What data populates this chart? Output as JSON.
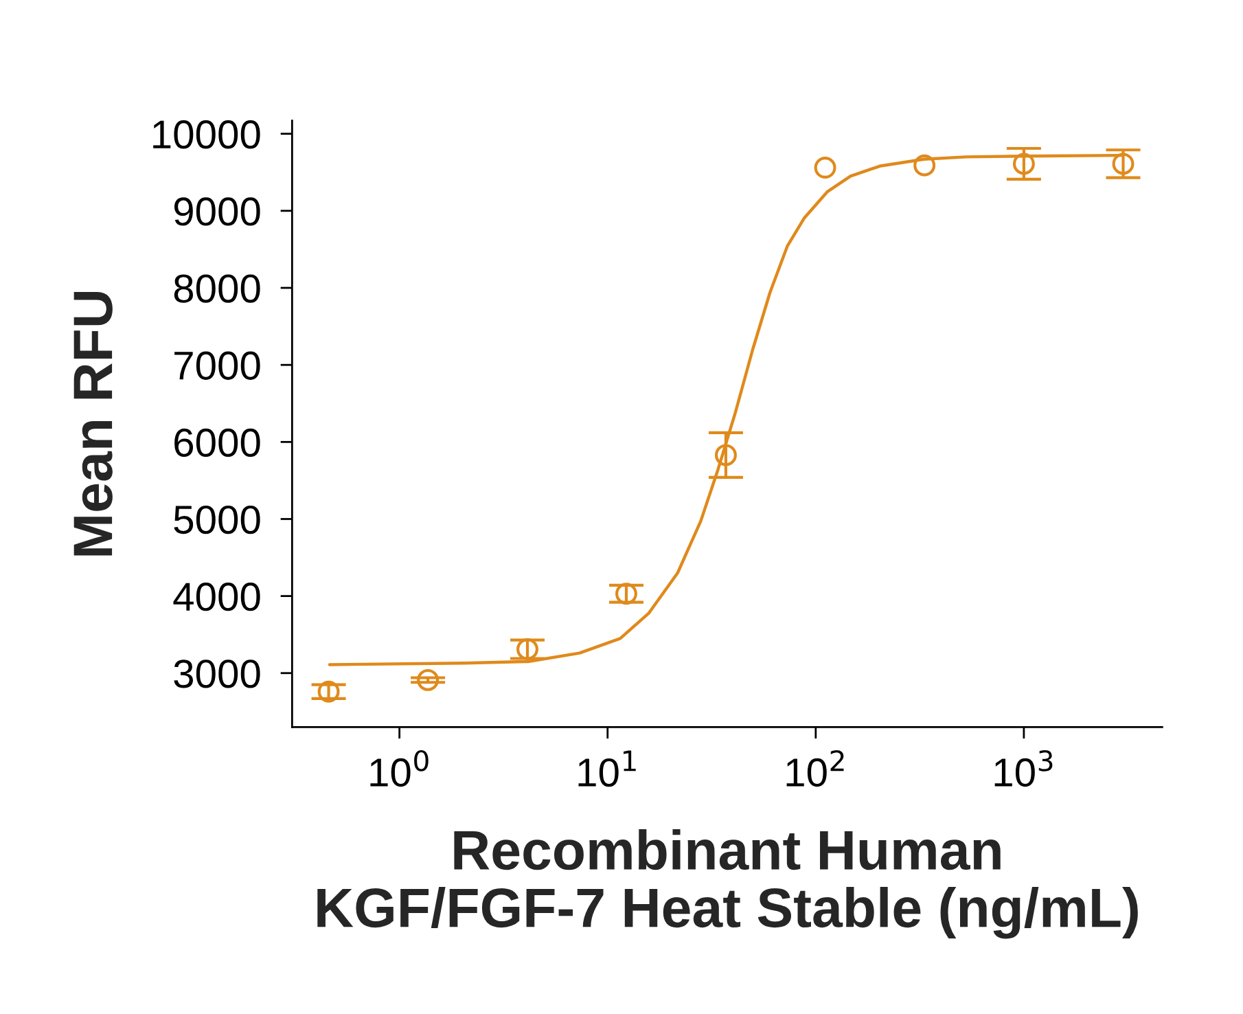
{
  "chart_data": {
    "type": "scatter",
    "xlabel": "Recombinant Human\nKGF/FGF-7 Heat Stable (ng/mL)",
    "ylabel": "Mean RFU",
    "log": "x",
    "grid": false,
    "xlim": [
      0.305,
      4620
    ],
    "xticks": [
      {
        "value": 1,
        "label": "10$^{0}$"
      },
      {
        "value": 10,
        "label": "10$^{1}$"
      },
      {
        "value": 100,
        "label": "10$^{2}$"
      },
      {
        "value": 1000,
        "label": "10$^{3}$"
      }
    ],
    "ylim": [
      2300,
      10170
    ],
    "yticks": [
      3000,
      4000,
      5000,
      6000,
      7000,
      8000,
      9000,
      10000
    ],
    "series": [
      {
        "marker": "circle",
        "color": "#df8a1c",
        "x": [
          0.457,
          1.37,
          4.12,
          12.3,
          37.0,
          111,
          333,
          1000,
          3000
        ],
        "values": [
          2760,
          2910,
          3310,
          4030,
          5830,
          9560,
          9590,
          9610,
          9610
        ],
        "errors": [
          90,
          30,
          120,
          110,
          290,
          null,
          null,
          200,
          180
        ]
      },
      {
        "type": "line",
        "color": "#df8a1c",
        "line_style": "solid",
        "x": [
          0.462,
          2.05,
          4.15,
          7.33,
          11.5,
          15.8,
          21.7,
          28.0,
          33.9,
          41.1,
          49.8,
          60.3,
          73.0,
          88.3,
          114,
          147,
          203,
          331,
          527,
          995,
          2960
        ],
        "values": [
          3110,
          3130,
          3150,
          3260,
          3450,
          3780,
          4300,
          4970,
          5640,
          6380,
          7200,
          7940,
          8540,
          8910,
          9250,
          9450,
          9580,
          9670,
          9700,
          9710,
          9720
        ]
      }
    ]
  }
}
